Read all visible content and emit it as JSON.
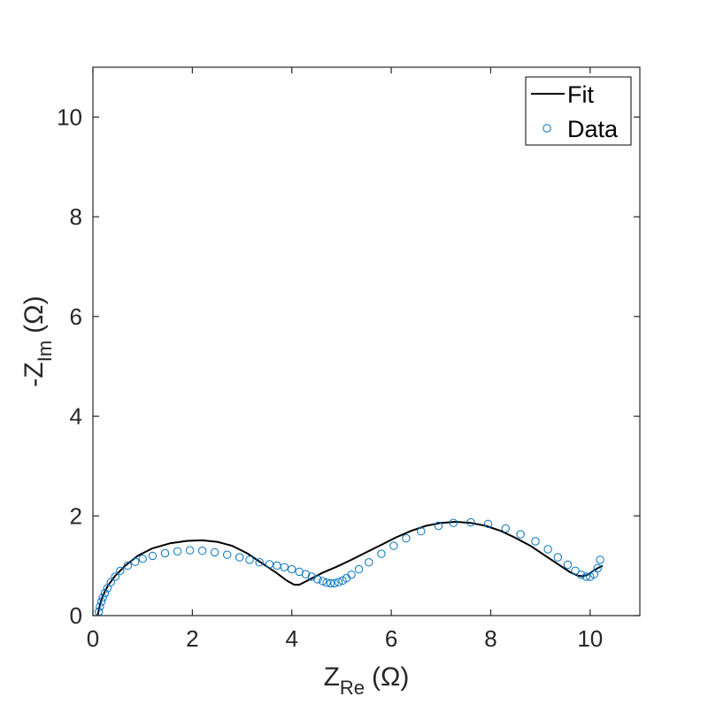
{
  "chart_data": {
    "type": "scatter",
    "title": "",
    "xlabel": {
      "main": "Z",
      "subscript": "Re",
      "unit": "(Ω)"
    },
    "ylabel": {
      "prefix": "-",
      "main": "Z",
      "subscript": "Im",
      "unit": "(Ω)"
    },
    "xlim": [
      0,
      11
    ],
    "ylim": [
      0,
      11
    ],
    "xticks": [
      0,
      2,
      4,
      6,
      8,
      10
    ],
    "yticks": [
      0,
      2,
      4,
      6,
      8,
      10
    ],
    "grid": false,
    "legend": {
      "placement": "top-right",
      "entries": [
        "Fit",
        "Data"
      ]
    },
    "series": [
      {
        "name": "Fit",
        "kind": "line",
        "color": "#000000",
        "x": [
          0.1,
          0.12,
          0.15,
          0.2,
          0.3,
          0.45,
          0.65,
          0.9,
          1.2,
          1.55,
          1.9,
          2.2,
          2.5,
          2.8,
          3.1,
          3.4,
          3.7,
          3.9,
          4.05,
          4.15,
          4.35,
          4.6,
          4.9,
          5.2,
          5.5,
          5.8,
          6.1,
          6.4,
          6.7,
          7.0,
          7.3,
          7.6,
          7.9,
          8.2,
          8.5,
          8.8,
          9.1,
          9.4,
          9.6,
          9.75,
          9.85,
          9.95,
          10.05,
          10.15,
          10.25
        ],
        "y": [
          0.02,
          0.12,
          0.25,
          0.4,
          0.6,
          0.8,
          1.0,
          1.2,
          1.35,
          1.45,
          1.5,
          1.51,
          1.48,
          1.4,
          1.25,
          1.05,
          0.85,
          0.7,
          0.62,
          0.62,
          0.72,
          0.85,
          0.98,
          1.12,
          1.27,
          1.42,
          1.57,
          1.7,
          1.8,
          1.86,
          1.88,
          1.86,
          1.8,
          1.7,
          1.56,
          1.4,
          1.2,
          1.0,
          0.87,
          0.8,
          0.79,
          0.82,
          0.89,
          0.95,
          1.0
        ]
      },
      {
        "name": "Data",
        "kind": "markers",
        "color": "#0072BD",
        "x": [
          0.12,
          0.14,
          0.17,
          0.2,
          0.24,
          0.29,
          0.36,
          0.45,
          0.55,
          0.7,
          0.85,
          1.0,
          1.2,
          1.45,
          1.7,
          1.95,
          2.2,
          2.45,
          2.7,
          2.95,
          3.15,
          3.35,
          3.55,
          3.7,
          3.85,
          4.0,
          4.15,
          4.28,
          4.4,
          4.52,
          4.62,
          4.7,
          4.78,
          4.86,
          4.94,
          5.02,
          5.1,
          5.2,
          5.35,
          5.55,
          5.8,
          6.05,
          6.3,
          6.6,
          6.95,
          7.25,
          7.6,
          7.95,
          8.3,
          8.6,
          8.9,
          9.15,
          9.35,
          9.55,
          9.7,
          9.82,
          9.92,
          10.0,
          10.08,
          10.15,
          10.2
        ],
        "y": [
          0.08,
          0.18,
          0.28,
          0.36,
          0.45,
          0.55,
          0.67,
          0.78,
          0.9,
          1.0,
          1.08,
          1.14,
          1.2,
          1.25,
          1.29,
          1.31,
          1.3,
          1.27,
          1.22,
          1.17,
          1.12,
          1.07,
          1.03,
          1.0,
          0.97,
          0.93,
          0.88,
          0.83,
          0.78,
          0.73,
          0.69,
          0.66,
          0.65,
          0.65,
          0.67,
          0.7,
          0.75,
          0.82,
          0.93,
          1.07,
          1.24,
          1.4,
          1.55,
          1.69,
          1.8,
          1.86,
          1.87,
          1.84,
          1.75,
          1.63,
          1.49,
          1.33,
          1.17,
          1.02,
          0.9,
          0.82,
          0.78,
          0.78,
          0.83,
          0.95,
          1.12
        ]
      }
    ]
  }
}
